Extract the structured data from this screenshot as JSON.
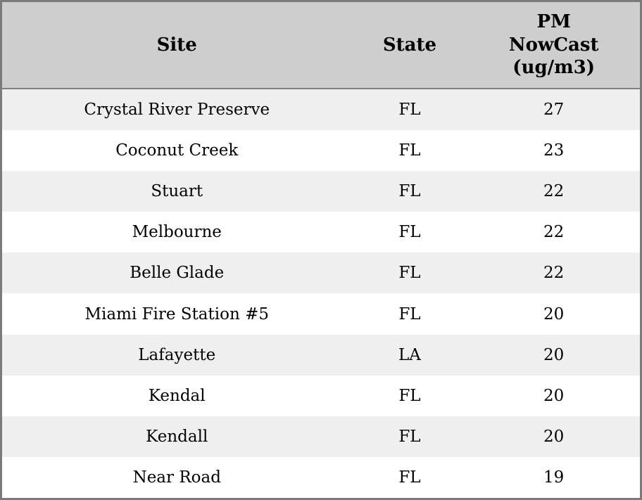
{
  "accent_colors": {
    "header_bg": "#cecece",
    "row_alt_bg": "#efefef",
    "row_bg": "#ffffff",
    "outer_border": "#7b7b7b",
    "header_border": "#818181",
    "text": "#000000"
  },
  "chart_data": {
    "type": "table",
    "title": "",
    "columns": [
      "Site",
      "State",
      "PM NowCast (ug/m3)"
    ],
    "rows": [
      [
        "Crystal River Preserve",
        "FL",
        "27"
      ],
      [
        "Coconut Creek",
        "FL",
        "23"
      ],
      [
        "Stuart",
        "FL",
        "22"
      ],
      [
        "Melbourne",
        "FL",
        "22"
      ],
      [
        "Belle Glade",
        "FL",
        "22"
      ],
      [
        "Miami Fire Station #5",
        "FL",
        "20"
      ],
      [
        "Lafayette",
        "LA",
        "20"
      ],
      [
        "Kendal",
        "FL",
        "20"
      ],
      [
        "Kendall",
        "FL",
        "20"
      ],
      [
        "Near Road",
        "FL",
        "19"
      ]
    ],
    "layout": {
      "row_striping": "odd-rows-gray",
      "alignment": "center",
      "header_wrap_lines": [
        "PM",
        "NowCast",
        "(ug/m3)"
      ]
    }
  }
}
